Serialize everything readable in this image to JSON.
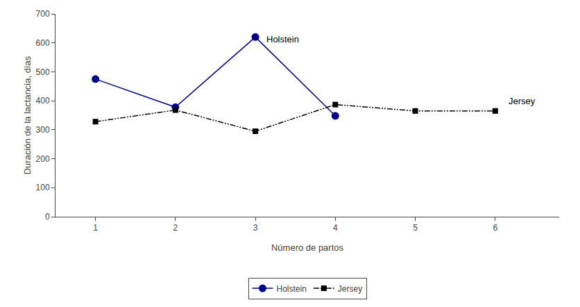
{
  "chart_data": {
    "type": "line",
    "x": [
      1,
      2,
      3,
      4,
      5,
      6
    ],
    "series": [
      {
        "name": "Holstein",
        "color": "#00008B",
        "marker": "circle",
        "line_style": "solid",
        "values": [
          475,
          378,
          620,
          348,
          null,
          null
        ]
      },
      {
        "name": "Jersey",
        "color": "#000000",
        "marker": "square",
        "line_style": "dashdotdot",
        "values": [
          328,
          368,
          295,
          387,
          365,
          365
        ]
      }
    ],
    "xlabel": "Número de partos",
    "ylabel": "Duración de la lactancia, días",
    "xlim": [
      0.5,
      6.8
    ],
    "ylim": [
      0,
      700
    ],
    "xticks": [
      1,
      2,
      3,
      4,
      5,
      6
    ],
    "yticks": [
      0,
      100,
      200,
      300,
      400,
      500,
      600,
      700
    ],
    "annotations": [
      {
        "text": "Holstein",
        "x": 3.12,
        "y": 612
      },
      {
        "text": "Jersey",
        "x": 6.15,
        "y": 400
      }
    ],
    "grid": false,
    "legend": "bottom"
  }
}
